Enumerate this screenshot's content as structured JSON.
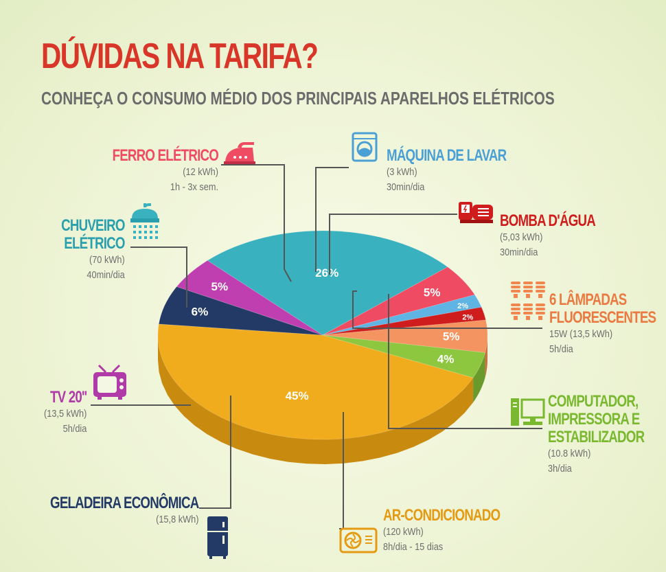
{
  "title": "DÚVIDAS NA TARIFA?",
  "subtitle": "CONHEÇA O CONSUMO MÉDIO DOS PRINCIPAIS APARELHOS ELÉTRICOS",
  "colors": {
    "background": "#eef4d6",
    "title": "#d9362a",
    "subtitle": "#6b6b6b"
  },
  "chart_data": {
    "type": "pie",
    "title": "DÚVIDAS NA TARIFA?",
    "subtitle": "CONHEÇA O CONSUMO MÉDIO DOS PRINCIPAIS APARELHOS ELÉTRICOS",
    "style": "3d",
    "slices": [
      {
        "label": "AR-CONDICIONADO",
        "value": 45,
        "display": "45%",
        "color": "#f0ac1c",
        "side": "#c98a10"
      },
      {
        "label": "GELADEIRA ECONÔMICA",
        "value": 6,
        "display": "6%",
        "color": "#233a66",
        "side": "#172848"
      },
      {
        "label": "TV 20''",
        "value": 5,
        "display": "5%",
        "color": "#c03fb0",
        "side": "#93307f"
      },
      {
        "label": "CHUVEIRO ELÉTRICO",
        "value": 26,
        "display": "26%",
        "color": "#3ab1be",
        "side": "#2a8b96"
      },
      {
        "label": "FERRO ELÉTRICO",
        "value": 5,
        "display": "5%",
        "color": "#ef4b63",
        "side": "#c23048"
      },
      {
        "label": "MÁQUINA DE LAVAR",
        "value": 2,
        "display": "2%",
        "color": "#5fb4e4",
        "side": "#3f8dba"
      },
      {
        "label": "BOMBA D'ÁGUA",
        "value": 2,
        "display": "2%",
        "color": "#cf1d1d",
        "side": "#a21212"
      },
      {
        "label": "6 LÂMPADAS FLUORESCENTES",
        "value": 5,
        "display": "5%",
        "color": "#f49460",
        "side": "#cc7040"
      },
      {
        "label": "COMPUTADOR, IMPRESSORA E ESTABILIZADOR",
        "value": 4,
        "display": "4%",
        "color": "#8dc63f",
        "side": "#6a9a2c"
      }
    ]
  },
  "labels": {
    "ferro": {
      "title": "FERRO ELÉTRICO",
      "line1": "(12 kWh)",
      "line2": "1h - 3x sem.",
      "color": "#ef4b63",
      "icon": "iron-icon"
    },
    "maquina": {
      "title": "MÁQUINA DE LAVAR",
      "line1": "(3 kWh)",
      "line2": "30min/dia",
      "color": "#4a9fd4",
      "icon": "washing-machine-icon"
    },
    "bomba": {
      "title": "BOMBA D'ÁGUA",
      "line1": "(5,03 kWh)",
      "line2": "30min/dia",
      "color": "#cf1d1d",
      "icon": "water-pump-icon"
    },
    "chuveiro": {
      "title1": "CHUVEIRO",
      "title2": "ELÉTRICO",
      "line1": "(70 kWh)",
      "line2": "40min/dia",
      "color": "#2a9fae",
      "icon": "shower-icon"
    },
    "lampadas": {
      "title1": "6 LÂMPADAS",
      "title2": "FLUORESCENTES",
      "line1": "15W (13,5 kWh)",
      "line2": "5h/dia",
      "color": "#ea7a42",
      "icon": "light-bulbs-icon"
    },
    "tv": {
      "title": "TV 20''",
      "line1": "(13,5 kWh)",
      "line2": "5h/dia",
      "color": "#b03aa8",
      "icon": "tv-icon"
    },
    "computador": {
      "title1": "COMPUTADOR,",
      "title2": "IMPRESSORA E",
      "title3": "ESTABILIZADOR",
      "line1": "(10.8 kWh)",
      "line2": "3h/dia",
      "color": "#79b82f",
      "icon": "computer-icon"
    },
    "geladeira": {
      "title": "GELADEIRA ECONÔMICA",
      "line1": "(15,8 kWh)",
      "color": "#233a66",
      "icon": "refrigerator-icon"
    },
    "ar": {
      "title": "AR-CONDICIONADO",
      "line1": "(120 kWh)",
      "line2": "8h/dia - 15 dias",
      "color": "#e49a12",
      "icon": "air-conditioner-icon"
    }
  }
}
